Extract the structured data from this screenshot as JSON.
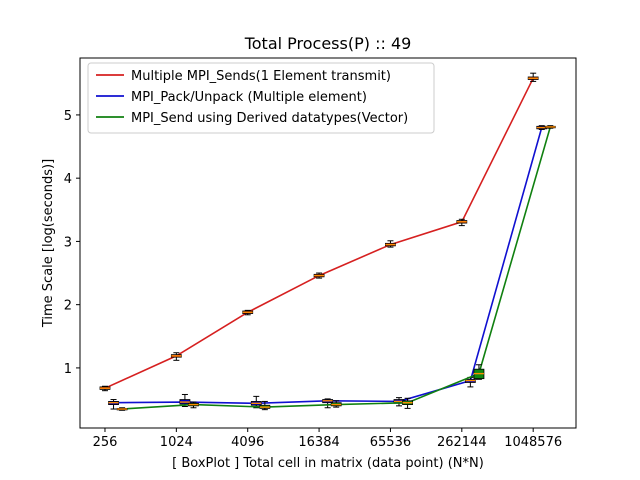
{
  "chart_data": {
    "type": "line",
    "title": "Total Process(P) :: 49",
    "xlabel": "[ BoxPlot ] Total cell in matrix (data point) (N*N)",
    "ylabel": "Time Scale [log(seconds)]",
    "categories": [
      "256",
      "1024",
      "4096",
      "16384",
      "65536",
      "262144",
      "1048576"
    ],
    "ylim": [
      0.05,
      5.9
    ],
    "yticks": [
      "1",
      "2",
      "3",
      "4",
      "5"
    ],
    "grid": false,
    "legend_position": "top-left",
    "series": [
      {
        "name": "Multiple MPI_Sends(1 Element transmit)",
        "color": "#d62020",
        "box_color": "#d62020",
        "offset": 0,
        "values": [
          0.68,
          1.19,
          1.88,
          2.46,
          2.95,
          3.31,
          5.58
        ],
        "q1": [
          0.66,
          1.17,
          1.86,
          2.44,
          2.93,
          3.29,
          5.56
        ],
        "q3": [
          0.7,
          1.21,
          1.9,
          2.48,
          2.97,
          3.33,
          5.6
        ],
        "whisker_low": [
          0.64,
          1.12,
          1.84,
          2.42,
          2.91,
          3.25,
          5.53
        ],
        "whisker_high": [
          0.71,
          1.24,
          1.91,
          2.5,
          3.01,
          3.35,
          5.66
        ]
      },
      {
        "name": "MPI_Pack/Unpack (Multiple element)",
        "color": "#1010d0",
        "box_color": "#0000c0",
        "offset": 0.12,
        "values": [
          0.45,
          0.46,
          0.44,
          0.48,
          0.47,
          0.8,
          4.8
        ],
        "q1": [
          0.42,
          0.43,
          0.41,
          0.45,
          0.44,
          0.77,
          4.78
        ],
        "q3": [
          0.47,
          0.5,
          0.47,
          0.5,
          0.5,
          0.82,
          4.82
        ],
        "whisker_low": [
          0.35,
          0.39,
          0.37,
          0.37,
          0.4,
          0.7,
          4.77
        ],
        "whisker_high": [
          0.5,
          0.58,
          0.55,
          0.51,
          0.53,
          0.85,
          4.83
        ]
      },
      {
        "name": "MPI_Send using Derived datatypes(Vector)",
        "color": "#108010",
        "box_color": "#118811",
        "offset": 0.24,
        "values": [
          0.35,
          0.42,
          0.38,
          0.42,
          0.45,
          0.91,
          4.81
        ],
        "q1": [
          0.34,
          0.4,
          0.36,
          0.4,
          0.42,
          0.83,
          4.8
        ],
        "q3": [
          0.36,
          0.44,
          0.41,
          0.45,
          0.48,
          0.98,
          4.82
        ],
        "whisker_low": [
          0.33,
          0.37,
          0.34,
          0.38,
          0.36,
          0.82,
          4.79
        ],
        "whisker_high": [
          0.37,
          0.46,
          0.47,
          0.48,
          0.52,
          1.05,
          4.83
        ]
      }
    ],
    "median_color": "#ff8c00"
  }
}
